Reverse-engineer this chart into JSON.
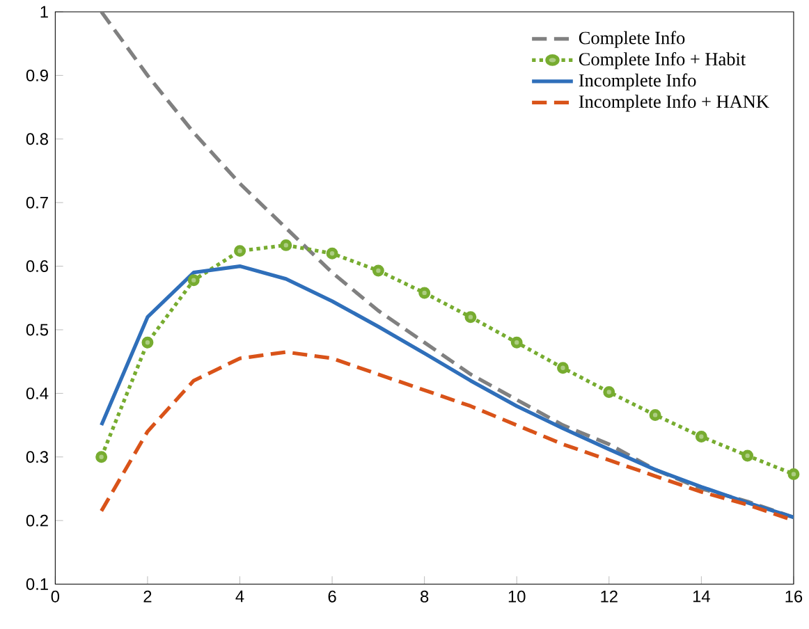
{
  "chart_data": {
    "type": "line",
    "x": [
      1,
      2,
      3,
      4,
      5,
      6,
      7,
      8,
      9,
      10,
      11,
      12,
      13,
      14,
      15,
      16
    ],
    "series": [
      {
        "name": "Complete Info",
        "color": "#808080",
        "line_style": "dashed",
        "marker": "none",
        "values": [
          1.0,
          0.9,
          0.81,
          0.73,
          0.66,
          0.59,
          0.53,
          0.48,
          0.43,
          0.39,
          0.35,
          0.32,
          0.28,
          0.25,
          0.23,
          0.205
        ]
      },
      {
        "name": "Complete Info + Habit",
        "color": "#77ac30",
        "line_style": "dotted",
        "marker": "circle",
        "values": [
          0.3,
          0.48,
          0.578,
          0.624,
          0.633,
          0.62,
          0.593,
          0.558,
          0.52,
          0.48,
          0.44,
          0.402,
          0.366,
          0.332,
          0.302,
          0.273
        ]
      },
      {
        "name": "Incomplete Info",
        "color": "#2f6fba",
        "line_style": "solid",
        "marker": "none",
        "values": [
          0.35,
          0.52,
          0.59,
          0.6,
          0.58,
          0.545,
          0.505,
          0.463,
          0.42,
          0.38,
          0.345,
          0.312,
          0.28,
          0.253,
          0.228,
          0.205
        ]
      },
      {
        "name": "Incomplete Info + HANK",
        "color": "#d95319",
        "line_style": "dashed",
        "marker": "none",
        "values": [
          0.215,
          0.34,
          0.42,
          0.455,
          0.465,
          0.455,
          0.43,
          0.405,
          0.38,
          0.35,
          0.32,
          0.295,
          0.27,
          0.245,
          0.225,
          0.2
        ]
      }
    ],
    "xlim": [
      0,
      16
    ],
    "ylim": [
      0.1,
      1
    ],
    "xticks": [
      0,
      2,
      4,
      6,
      8,
      10,
      12,
      14,
      16
    ],
    "yticks": [
      0.1,
      0.2,
      0.3,
      0.4,
      0.5,
      0.6,
      0.7,
      0.8,
      0.9,
      1
    ],
    "legend": "top right",
    "grid": false
  }
}
